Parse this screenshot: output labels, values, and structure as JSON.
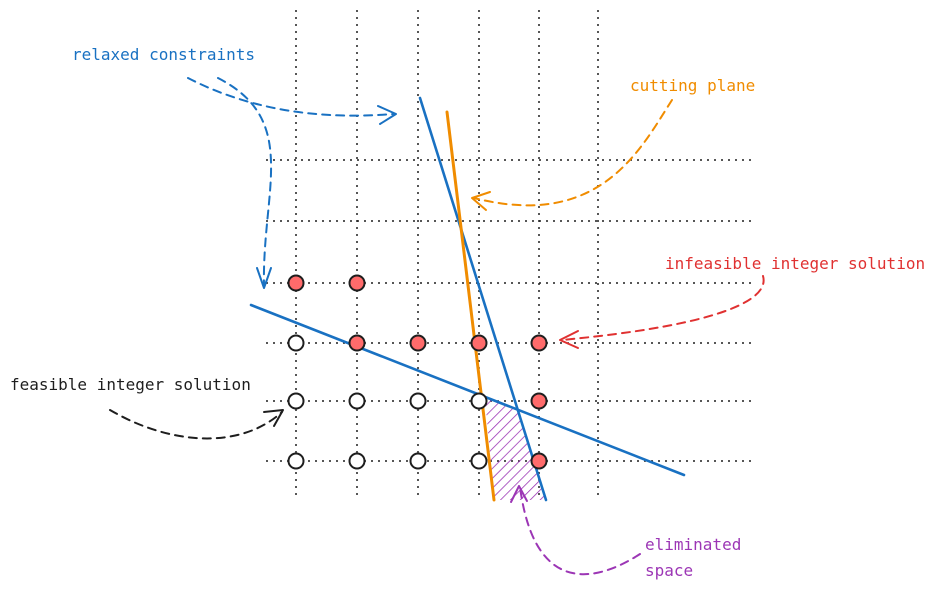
{
  "colors": {
    "blue": "#1971c2",
    "orange": "#f08c00",
    "red": "#e03131",
    "purple": "#9c36b5",
    "black": "#1e1e1e",
    "grid": "#1e1e1e",
    "point_fill_red": "#ff6b6b"
  },
  "labels": {
    "relaxed_constraints": "relaxed constraints",
    "cutting_plane": "cutting plane",
    "infeasible_integer_solution": "infeasible integer solution",
    "feasible_integer_solution": "feasible integer solution",
    "eliminated_space_line1": "eliminated",
    "eliminated_space_line2": "space"
  },
  "points": {
    "row1": [
      "infeasible",
      "infeasible"
    ],
    "row2": [
      "feasible",
      "infeasible",
      "infeasible",
      "infeasible",
      "infeasible"
    ],
    "row3": [
      "feasible",
      "feasible",
      "feasible",
      "feasible",
      "infeasible"
    ],
    "row4": [
      "feasible",
      "feasible",
      "feasible",
      "feasible",
      "infeasible"
    ]
  }
}
